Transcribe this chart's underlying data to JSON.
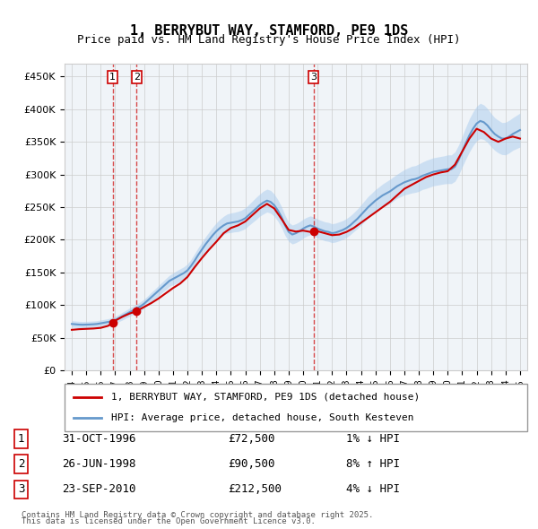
{
  "title": "1, BERRYBUT WAY, STAMFORD, PE9 1DS",
  "subtitle": "Price paid vs. HM Land Registry's House Price Index (HPI)",
  "legend_line1": "1, BERRYBUT WAY, STAMFORD, PE9 1DS (detached house)",
  "legend_line2": "HPI: Average price, detached house, South Kesteven",
  "footer1": "Contains HM Land Registry data © Crown copyright and database right 2025.",
  "footer2": "This data is licensed under the Open Government Licence v3.0.",
  "transactions": [
    {
      "num": 1,
      "date": "31-OCT-1996",
      "price": 72500,
      "hpi_text": "1% ↓ HPI",
      "x_year": 1996.83
    },
    {
      "num": 2,
      "date": "26-JUN-1998",
      "price": 90500,
      "hpi_text": "8% ↑ HPI",
      "x_year": 1998.48
    },
    {
      "num": 3,
      "date": "23-SEP-2010",
      "price": 212500,
      "hpi_text": "4% ↓ HPI",
      "x_year": 2010.72
    }
  ],
  "vline_color": "#cc0000",
  "vline_alpha": 0.5,
  "price_line_color": "#cc0000",
  "hpi_line_color": "#6699cc",
  "hpi_fill_color": "#aaccee",
  "background_color": "#f0f4f8",
  "grid_color": "#cccccc",
  "ylim": [
    0,
    470000
  ],
  "yticks": [
    0,
    50000,
    100000,
    150000,
    200000,
    250000,
    300000,
    350000,
    400000,
    450000
  ],
  "xlim_start": 1993.5,
  "xlim_end": 2025.5,
  "xticks": [
    1994,
    1995,
    1996,
    1997,
    1998,
    1999,
    2000,
    2001,
    2002,
    2003,
    2004,
    2005,
    2006,
    2007,
    2008,
    2009,
    2010,
    2011,
    2012,
    2013,
    2014,
    2015,
    2016,
    2017,
    2018,
    2019,
    2020,
    2021,
    2022,
    2023,
    2024,
    2025
  ],
  "hpi_data": {
    "x": [
      1994.0,
      1994.25,
      1994.5,
      1994.75,
      1995.0,
      1995.25,
      1995.5,
      1995.75,
      1996.0,
      1996.25,
      1996.5,
      1996.75,
      1997.0,
      1997.25,
      1997.5,
      1997.75,
      1998.0,
      1998.25,
      1998.5,
      1998.75,
      1999.0,
      1999.25,
      1999.5,
      1999.75,
      2000.0,
      2000.25,
      2000.5,
      2000.75,
      2001.0,
      2001.25,
      2001.5,
      2001.75,
      2002.0,
      2002.25,
      2002.5,
      2002.75,
      2003.0,
      2003.25,
      2003.5,
      2003.75,
      2004.0,
      2004.25,
      2004.5,
      2004.75,
      2005.0,
      2005.25,
      2005.5,
      2005.75,
      2006.0,
      2006.25,
      2006.5,
      2006.75,
      2007.0,
      2007.25,
      2007.5,
      2007.75,
      2008.0,
      2008.25,
      2008.5,
      2008.75,
      2009.0,
      2009.25,
      2009.5,
      2009.75,
      2010.0,
      2010.25,
      2010.5,
      2010.75,
      2011.0,
      2011.25,
      2011.5,
      2011.75,
      2012.0,
      2012.25,
      2012.5,
      2012.75,
      2013.0,
      2013.25,
      2013.5,
      2013.75,
      2014.0,
      2014.25,
      2014.5,
      2014.75,
      2015.0,
      2015.25,
      2015.5,
      2015.75,
      2016.0,
      2016.25,
      2016.5,
      2016.75,
      2017.0,
      2017.25,
      2017.5,
      2017.75,
      2018.0,
      2018.25,
      2018.5,
      2018.75,
      2019.0,
      2019.25,
      2019.5,
      2019.75,
      2020.0,
      2020.25,
      2020.5,
      2020.75,
      2021.0,
      2021.25,
      2021.5,
      2021.75,
      2022.0,
      2022.25,
      2022.5,
      2022.75,
      2023.0,
      2023.25,
      2023.5,
      2023.75,
      2024.0,
      2024.25,
      2024.5,
      2024.75,
      2025.0
    ],
    "y": [
      71000,
      70500,
      70000,
      69800,
      70000,
      70200,
      70500,
      71000,
      72000,
      73000,
      74000,
      75000,
      77000,
      80000,
      83000,
      86000,
      89000,
      92000,
      95000,
      98000,
      102000,
      107000,
      112000,
      117000,
      122000,
      127000,
      132000,
      137000,
      140000,
      143000,
      146000,
      149000,
      153000,
      160000,
      168000,
      177000,
      185000,
      193000,
      200000,
      207000,
      213000,
      218000,
      222000,
      225000,
      226000,
      227000,
      228000,
      230000,
      233000,
      238000,
      243000,
      248000,
      253000,
      257000,
      260000,
      258000,
      253000,
      245000,
      235000,
      222000,
      212000,
      208000,
      210000,
      213000,
      217000,
      220000,
      222000,
      220000,
      217000,
      215000,
      213000,
      212000,
      210000,
      211000,
      213000,
      215000,
      218000,
      222000,
      227000,
      232000,
      238000,
      244000,
      250000,
      255000,
      260000,
      264000,
      268000,
      271000,
      274000,
      278000,
      282000,
      285000,
      288000,
      290000,
      292000,
      293000,
      295000,
      298000,
      300000,
      302000,
      304000,
      305000,
      306000,
      307000,
      308000,
      308000,
      312000,
      322000,
      335000,
      348000,
      360000,
      370000,
      378000,
      382000,
      380000,
      375000,
      368000,
      362000,
      358000,
      355000,
      355000,
      358000,
      362000,
      365000,
      368000
    ],
    "y_upper": [
      76000,
      75500,
      75000,
      74800,
      75000,
      75200,
      75500,
      76000,
      77000,
      78000,
      79000,
      80500,
      82500,
      85500,
      89000,
      92000,
      95500,
      98500,
      101500,
      105000,
      109000,
      114000,
      119500,
      124500,
      130000,
      135000,
      140500,
      145500,
      149000,
      152500,
      155500,
      158500,
      163000,
      170000,
      179000,
      188000,
      196500,
      204500,
      212000,
      219500,
      226000,
      231500,
      236000,
      239500,
      241000,
      242000,
      243500,
      245500,
      249000,
      254000,
      259500,
      265000,
      270000,
      274500,
      277500,
      275500,
      270000,
      261500,
      251000,
      237500,
      226500,
      222500,
      224500,
      227500,
      231500,
      234500,
      236500,
      234500,
      231500,
      229500,
      227500,
      226500,
      224500,
      225500,
      227500,
      229500,
      232500,
      236500,
      241500,
      247000,
      253500,
      260000,
      266500,
      271500,
      277000,
      281000,
      285500,
      289000,
      292500,
      296500,
      300500,
      304000,
      307500,
      310000,
      312500,
      313500,
      316000,
      319000,
      321500,
      323500,
      325500,
      326500,
      327500,
      328500,
      330000,
      330000,
      334500,
      345000,
      358500,
      372500,
      385500,
      396000,
      404500,
      409000,
      406500,
      401000,
      393500,
      387000,
      383000,
      379500,
      380000,
      383000,
      387000,
      390500,
      394000
    ],
    "y_lower": [
      66000,
      65500,
      65000,
      64800,
      65000,
      65200,
      65500,
      66000,
      67000,
      68000,
      69000,
      69500,
      71500,
      74500,
      77000,
      80000,
      82500,
      85500,
      88500,
      91000,
      95000,
      100000,
      104500,
      109500,
      114000,
      119000,
      123500,
      128500,
      131000,
      133500,
      136500,
      139500,
      143000,
      150000,
      157000,
      166000,
      173500,
      181500,
      188000,
      194500,
      200000,
      204500,
      208000,
      210500,
      211000,
      212000,
      212500,
      214500,
      217000,
      222000,
      226500,
      231000,
      236000,
      239500,
      242500,
      240500,
      236000,
      228500,
      219000,
      206500,
      197500,
      193500,
      195500,
      198500,
      202500,
      205500,
      207500,
      205500,
      202500,
      200500,
      198500,
      197500,
      195500,
      196500,
      198500,
      200500,
      203500,
      207500,
      212500,
      217000,
      222500,
      228000,
      233500,
      238500,
      243000,
      247000,
      250500,
      253000,
      255500,
      259500,
      263500,
      266000,
      268500,
      270000,
      271500,
      272500,
      274000,
      277000,
      278500,
      280500,
      282500,
      283500,
      284500,
      285500,
      286000,
      286000,
      289500,
      299000,
      311500,
      323500,
      334500,
      344000,
      351500,
      355000,
      353500,
      349000,
      342500,
      337000,
      333000,
      330500,
      330000,
      333000,
      337000,
      339500,
      342000
    ]
  },
  "price_data": {
    "x": [
      1994.0,
      1994.5,
      1995.0,
      1995.5,
      1996.0,
      1996.5,
      1996.83,
      1997.0,
      1997.5,
      1998.0,
      1998.48,
      1998.5,
      1999.0,
      1999.5,
      2000.0,
      2000.5,
      2001.0,
      2001.5,
      2002.0,
      2002.5,
      2003.0,
      2003.5,
      2004.0,
      2004.5,
      2005.0,
      2005.5,
      2006.0,
      2006.5,
      2007.0,
      2007.5,
      2008.0,
      2008.5,
      2009.0,
      2009.5,
      2010.0,
      2010.5,
      2010.72,
      2011.0,
      2011.5,
      2012.0,
      2012.5,
      2013.0,
      2013.5,
      2014.0,
      2014.5,
      2015.0,
      2015.5,
      2016.0,
      2016.5,
      2017.0,
      2017.5,
      2018.0,
      2018.5,
      2019.0,
      2019.5,
      2020.0,
      2020.5,
      2021.0,
      2021.5,
      2022.0,
      2022.5,
      2023.0,
      2023.5,
      2024.0,
      2024.5,
      2025.0
    ],
    "y": [
      62000,
      63000,
      63500,
      64000,
      65000,
      68000,
      72500,
      76000,
      82000,
      87000,
      90500,
      91000,
      97000,
      103000,
      110000,
      118000,
      126000,
      133000,
      143000,
      158000,
      172000,
      185000,
      197000,
      210000,
      218000,
      222000,
      228000,
      238000,
      248000,
      255000,
      248000,
      232000,
      215000,
      212500,
      214000,
      212000,
      212500,
      213000,
      210000,
      207000,
      208000,
      212000,
      218000,
      226000,
      234000,
      242000,
      250000,
      258000,
      268000,
      278000,
      284000,
      290000,
      296000,
      300000,
      303000,
      305000,
      315000,
      335000,
      355000,
      370000,
      365000,
      355000,
      350000,
      355000,
      358000,
      355000
    ]
  }
}
